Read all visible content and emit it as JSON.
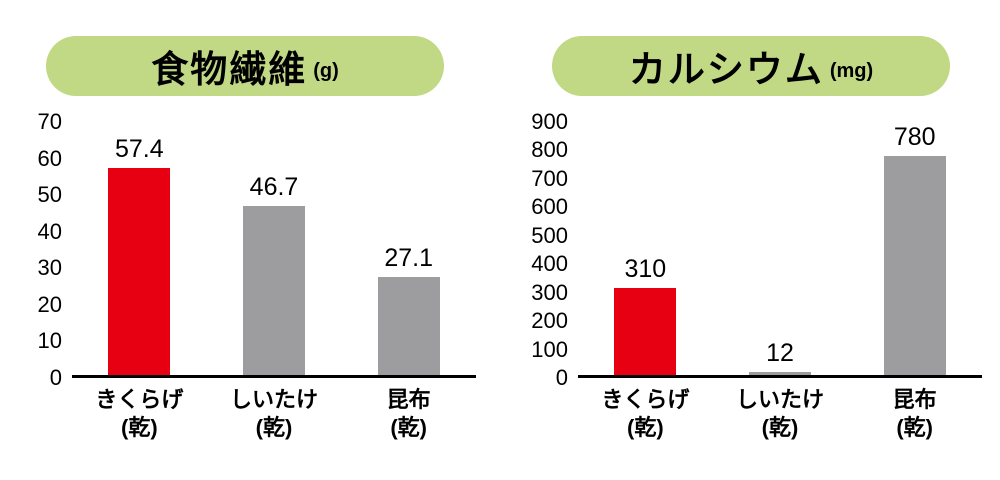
{
  "page": {
    "background": "#ffffff"
  },
  "colors": {
    "accent_red": "#e60012",
    "bar_gray": "#9d9d9f",
    "title_green": "#c1d884",
    "axis_black": "#000000"
  },
  "chart_data": [
    {
      "type": "bar",
      "title": "食物繊維",
      "unit_label": "(g)",
      "categories": [
        [
          "きくらげ",
          "(乾)"
        ],
        [
          "しいたけ",
          "(乾)"
        ],
        [
          "昆布",
          "(乾)"
        ]
      ],
      "values": [
        57.4,
        46.7,
        27.1
      ],
      "value_labels": [
        "57.4",
        "46.7",
        "27.1"
      ],
      "bar_colors": [
        "#e60012",
        "#9d9d9f",
        "#9d9d9f"
      ],
      "ylim": [
        0,
        70
      ],
      "ytick_step": 10,
      "grid": false,
      "legend": false,
      "xlabel": "",
      "ylabel": ""
    },
    {
      "type": "bar",
      "title": "カルシウム",
      "unit_label": "(mg)",
      "categories": [
        [
          "きくらげ",
          "(乾)"
        ],
        [
          "しいたけ",
          "(乾)"
        ],
        [
          "昆布",
          "(乾)"
        ]
      ],
      "values": [
        310,
        12,
        780
      ],
      "value_labels": [
        "310",
        "12",
        "780"
      ],
      "bar_colors": [
        "#e60012",
        "#9d9d9f",
        "#9d9d9f"
      ],
      "ylim": [
        0,
        900
      ],
      "ytick_step": 100,
      "grid": false,
      "legend": false,
      "xlabel": "",
      "ylabel": ""
    }
  ]
}
